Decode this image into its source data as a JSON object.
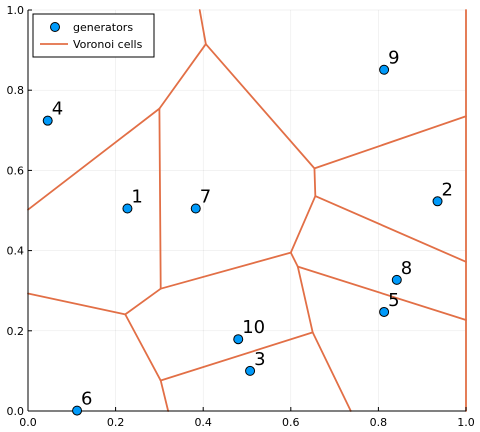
{
  "chart_data": {
    "type": "scatter",
    "xlim": [
      0.0,
      1.0
    ],
    "ylim": [
      0.0,
      1.0
    ],
    "grid": true,
    "legend_position": "top-left",
    "x_ticks": [
      "0.0",
      "0.2",
      "0.4",
      "0.6",
      "0.8",
      "1.0"
    ],
    "y_ticks": [
      "0.0",
      "0.2",
      "0.4",
      "0.6",
      "0.8",
      "1.0"
    ],
    "colors": {
      "generators": "#009AFA",
      "voronoi": "#E26F46"
    },
    "series": [
      {
        "name": "generators",
        "points": [
          {
            "label": "1",
            "x": 0.227,
            "y": 0.505
          },
          {
            "label": "2",
            "x": 0.935,
            "y": 0.523
          },
          {
            "label": "3",
            "x": 0.507,
            "y": 0.1
          },
          {
            "label": "4",
            "x": 0.045,
            "y": 0.724
          },
          {
            "label": "5",
            "x": 0.813,
            "y": 0.247
          },
          {
            "label": "6",
            "x": 0.112,
            "y": 0.001
          },
          {
            "label": "7",
            "x": 0.383,
            "y": 0.505
          },
          {
            "label": "8",
            "x": 0.842,
            "y": 0.327
          },
          {
            "label": "9",
            "x": 0.813,
            "y": 0.851
          },
          {
            "label": "10",
            "x": 0.48,
            "y": 0.179
          }
        ]
      },
      {
        "name": "Voronoi cells",
        "segments": [
          [
            [
              0.392,
              1.0
            ],
            [
              0.406,
              0.915
            ]
          ],
          [
            [
              0.406,
              0.915
            ],
            [
              0.3,
              0.754
            ]
          ],
          [
            [
              0.406,
              0.915
            ],
            [
              0.654,
              0.605
            ]
          ],
          [
            [
              0.3,
              0.754
            ],
            [
              0.0,
              0.502
            ]
          ],
          [
            [
              0.3,
              0.754
            ],
            [
              0.303,
              0.305
            ]
          ],
          [
            [
              0.654,
              0.605
            ],
            [
              1.0,
              0.735
            ]
          ],
          [
            [
              0.654,
              0.605
            ],
            [
              0.656,
              0.536
            ]
          ],
          [
            [
              0.656,
              0.536
            ],
            [
              1.0,
              0.372
            ]
          ],
          [
            [
              0.656,
              0.536
            ],
            [
              0.6,
              0.395
            ]
          ],
          [
            [
              0.6,
              0.395
            ],
            [
              0.303,
              0.305
            ]
          ],
          [
            [
              0.6,
              0.395
            ],
            [
              0.616,
              0.36
            ]
          ],
          [
            [
              0.616,
              0.36
            ],
            [
              1.0,
              0.227
            ]
          ],
          [
            [
              0.616,
              0.36
            ],
            [
              0.65,
              0.196
            ]
          ],
          [
            [
              0.65,
              0.196
            ],
            [
              0.303,
              0.076
            ]
          ],
          [
            [
              0.65,
              0.196
            ],
            [
              0.737,
              0.0
            ]
          ],
          [
            [
              0.303,
              0.305
            ],
            [
              0.222,
              0.241
            ]
          ],
          [
            [
              0.222,
              0.241
            ],
            [
              0.0,
              0.293
            ]
          ],
          [
            [
              0.222,
              0.241
            ],
            [
              0.303,
              0.076
            ]
          ],
          [
            [
              0.303,
              0.076
            ],
            [
              0.32,
              0.0
            ]
          ],
          [
            [
              1.0,
              1.0
            ],
            [
              1.0,
              0.0
            ]
          ]
        ]
      }
    ]
  }
}
